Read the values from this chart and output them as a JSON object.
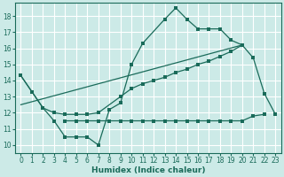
{
  "xlabel": "Humidex (Indice chaleur)",
  "background_color": "#cceae7",
  "grid_color": "#ffffff",
  "line_color": "#1a6b5a",
  "xlim": [
    -0.5,
    23.5
  ],
  "ylim": [
    9.5,
    18.8
  ],
  "xticks": [
    0,
    1,
    2,
    3,
    4,
    5,
    6,
    7,
    8,
    9,
    10,
    11,
    12,
    13,
    14,
    15,
    16,
    17,
    18,
    19,
    20,
    21,
    22,
    23
  ],
  "yticks": [
    10,
    11,
    12,
    13,
    14,
    15,
    16,
    17,
    18
  ],
  "series_main_x": [
    0,
    1,
    2,
    3,
    4,
    5,
    6,
    7,
    8,
    9,
    10,
    11,
    13,
    14,
    15,
    16,
    17,
    18,
    19,
    20,
    21,
    22,
    23
  ],
  "series_main_y": [
    14.3,
    13.3,
    12.3,
    11.5,
    10.5,
    10.5,
    10.5,
    10.0,
    12.2,
    12.6,
    15.0,
    16.3,
    17.8,
    18.5,
    17.8,
    17.2,
    17.2,
    17.2,
    16.5,
    16.2,
    15.4,
    13.2,
    11.9
  ],
  "series_mid_x": [
    0,
    1,
    2,
    3,
    4,
    5,
    6,
    7,
    9,
    10,
    11,
    12,
    13,
    14,
    15,
    16,
    17,
    18,
    19,
    20
  ],
  "series_mid_y": [
    14.3,
    13.3,
    12.3,
    12.0,
    11.9,
    11.9,
    11.9,
    12.0,
    13.0,
    13.5,
    13.8,
    14.0,
    14.2,
    14.5,
    14.7,
    15.0,
    15.2,
    15.5,
    15.8,
    16.2
  ],
  "series_flat_x": [
    4,
    5,
    6,
    7,
    8,
    9,
    10,
    11,
    12,
    13,
    14,
    15,
    16,
    17,
    18,
    19,
    20,
    21,
    22
  ],
  "series_flat_y": [
    11.5,
    11.5,
    11.5,
    11.5,
    11.5,
    11.5,
    11.5,
    11.5,
    11.5,
    11.5,
    11.5,
    11.5,
    11.5,
    11.5,
    11.5,
    11.5,
    11.5,
    11.8,
    11.9
  ],
  "trend_x": [
    0,
    20
  ],
  "trend_y": [
    12.5,
    16.2
  ]
}
